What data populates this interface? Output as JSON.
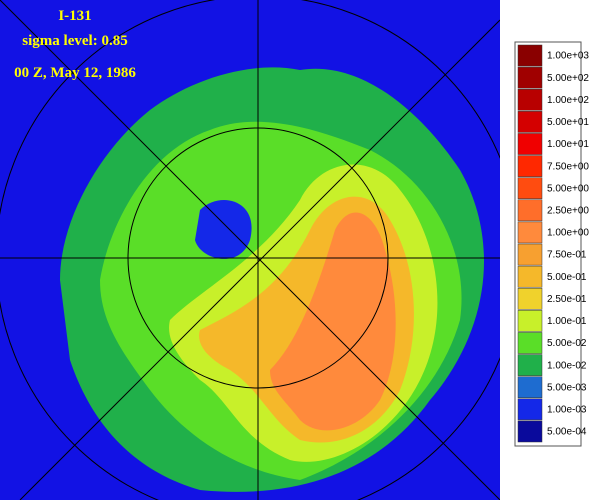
{
  "title": [
    "I-131",
    "sigma level: 0.85",
    "00 Z, May 12, 1986"
  ],
  "legend": [
    {
      "label": "1.00e+03",
      "color": "#8a0000"
    },
    {
      "label": "5.00e+02",
      "color": "#a00000"
    },
    {
      "label": "1.00e+02",
      "color": "#b80000"
    },
    {
      "label": "5.00e+01",
      "color": "#d40000"
    },
    {
      "label": "1.00e+01",
      "color": "#f00000"
    },
    {
      "label": "7.50e+00",
      "color": "#ff2800"
    },
    {
      "label": "5.00e+00",
      "color": "#ff4c10"
    },
    {
      "label": "2.50e+00",
      "color": "#ff6e2a"
    },
    {
      "label": "1.00e+00",
      "color": "#ff8a3c"
    },
    {
      "label": "7.50e-01",
      "color": "#f7a030"
    },
    {
      "label": "5.00e-01",
      "color": "#f5b82a"
    },
    {
      "label": "2.50e-01",
      "color": "#f0d22c"
    },
    {
      "label": "1.00e-01",
      "color": "#c8f02a"
    },
    {
      "label": "5.00e-02",
      "color": "#5ade28"
    },
    {
      "label": "1.00e-02",
      "color": "#20b04a"
    },
    {
      "label": "5.00e-03",
      "color": "#1e6cd0"
    },
    {
      "label": "1.00e-03",
      "color": "#1428e8"
    },
    {
      "label": "5.00e-04",
      "color": "#0a0a9c"
    }
  ]
}
